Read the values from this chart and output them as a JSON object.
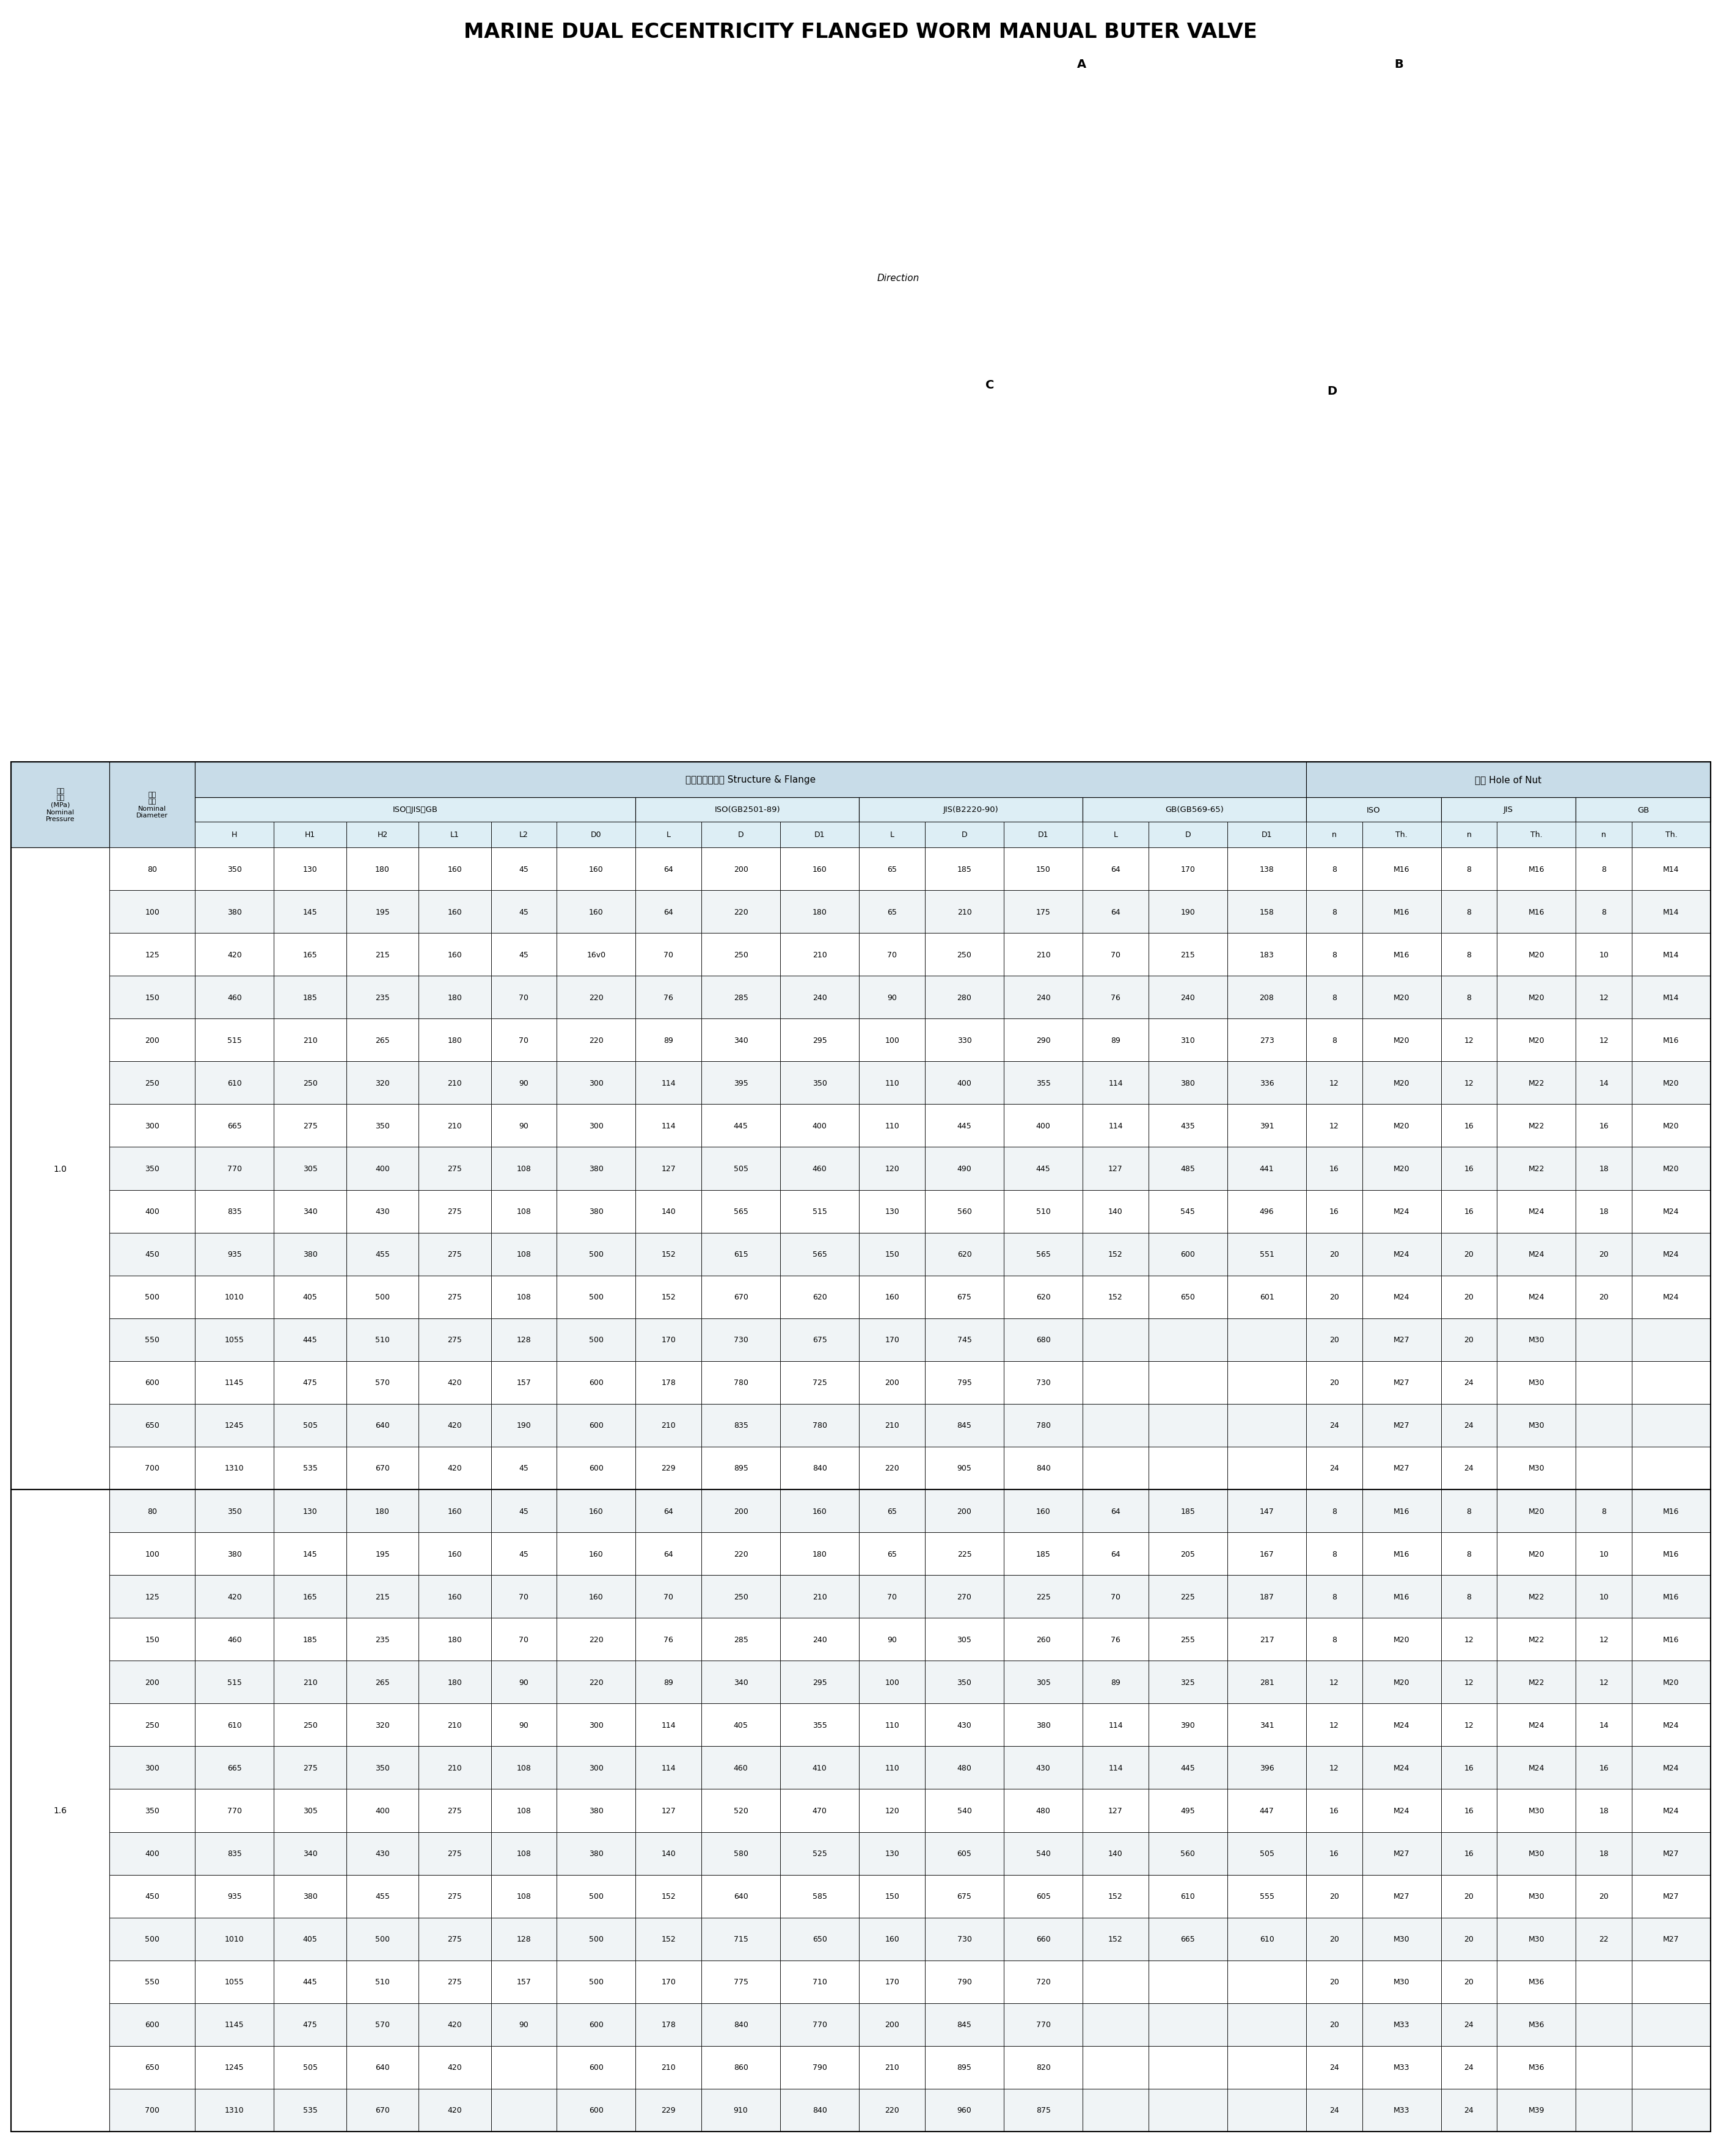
{
  "title": "MARINE DUAL ECCENTRICITY FLANGED WORM MANUAL BUTER VALVE",
  "rows_1_0": [
    [
      "80",
      "350",
      "130",
      "180",
      "160",
      "45",
      "160",
      "64",
      "200",
      "160",
      "65",
      "185",
      "150",
      "64",
      "170",
      "138",
      "8",
      "M16",
      "8",
      "M16",
      "8",
      "M14"
    ],
    [
      "100",
      "380",
      "145",
      "195",
      "160",
      "45",
      "160",
      "64",
      "220",
      "180",
      "65",
      "210",
      "175",
      "64",
      "190",
      "158",
      "8",
      "M16",
      "8",
      "M16",
      "8",
      "M14"
    ],
    [
      "125",
      "420",
      "165",
      "215",
      "160",
      "45",
      "16v0",
      "70",
      "250",
      "210",
      "70",
      "250",
      "210",
      "70",
      "215",
      "183",
      "8",
      "M16",
      "8",
      "M20",
      "10",
      "M14"
    ],
    [
      "150",
      "460",
      "185",
      "235",
      "180",
      "70",
      "220",
      "76",
      "285",
      "240",
      "90",
      "280",
      "240",
      "76",
      "240",
      "208",
      "8",
      "M20",
      "8",
      "M20",
      "12",
      "M14"
    ],
    [
      "200",
      "515",
      "210",
      "265",
      "180",
      "70",
      "220",
      "89",
      "340",
      "295",
      "100",
      "330",
      "290",
      "89",
      "310",
      "273",
      "8",
      "M20",
      "12",
      "M20",
      "12",
      "M16"
    ],
    [
      "250",
      "610",
      "250",
      "320",
      "210",
      "90",
      "300",
      "114",
      "395",
      "350",
      "110",
      "400",
      "355",
      "114",
      "380",
      "336",
      "12",
      "M20",
      "12",
      "M22",
      "14",
      "M20"
    ],
    [
      "300",
      "665",
      "275",
      "350",
      "210",
      "90",
      "300",
      "114",
      "445",
      "400",
      "110",
      "445",
      "400",
      "114",
      "435",
      "391",
      "12",
      "M20",
      "16",
      "M22",
      "16",
      "M20"
    ],
    [
      "350",
      "770",
      "305",
      "400",
      "275",
      "108",
      "380",
      "127",
      "505",
      "460",
      "120",
      "490",
      "445",
      "127",
      "485",
      "441",
      "16",
      "M20",
      "16",
      "M22",
      "18",
      "M20"
    ],
    [
      "400",
      "835",
      "340",
      "430",
      "275",
      "108",
      "380",
      "140",
      "565",
      "515",
      "130",
      "560",
      "510",
      "140",
      "545",
      "496",
      "16",
      "M24",
      "16",
      "M24",
      "18",
      "M24"
    ],
    [
      "450",
      "935",
      "380",
      "455",
      "275",
      "108",
      "500",
      "152",
      "615",
      "565",
      "150",
      "620",
      "565",
      "152",
      "600",
      "551",
      "20",
      "M24",
      "20",
      "M24",
      "20",
      "M24"
    ],
    [
      "500",
      "1010",
      "405",
      "500",
      "275",
      "108",
      "500",
      "152",
      "670",
      "620",
      "160",
      "675",
      "620",
      "152",
      "650",
      "601",
      "20",
      "M24",
      "20",
      "M24",
      "20",
      "M24"
    ],
    [
      "550",
      "1055",
      "445",
      "510",
      "275",
      "128",
      "500",
      "170",
      "730",
      "675",
      "170",
      "745",
      "680",
      "",
      "",
      "",
      "20",
      "M27",
      "20",
      "M30",
      "",
      ""
    ],
    [
      "600",
      "1145",
      "475",
      "570",
      "420",
      "157",
      "600",
      "178",
      "780",
      "725",
      "200",
      "795",
      "730",
      "",
      "",
      "",
      "20",
      "M27",
      "24",
      "M30",
      "",
      ""
    ],
    [
      "650",
      "1245",
      "505",
      "640",
      "420",
      "190",
      "600",
      "210",
      "835",
      "780",
      "210",
      "845",
      "780",
      "",
      "",
      "",
      "24",
      "M27",
      "24",
      "M30",
      "",
      ""
    ],
    [
      "700",
      "1310",
      "535",
      "670",
      "420",
      "45",
      "600",
      "229",
      "895",
      "840",
      "220",
      "905",
      "840",
      "",
      "",
      "",
      "24",
      "M27",
      "24",
      "M30",
      "",
      ""
    ]
  ],
  "rows_1_6": [
    [
      "80",
      "350",
      "130",
      "180",
      "160",
      "45",
      "160",
      "64",
      "200",
      "160",
      "65",
      "200",
      "160",
      "64",
      "185",
      "147",
      "8",
      "M16",
      "8",
      "M20",
      "8",
      "M16"
    ],
    [
      "100",
      "380",
      "145",
      "195",
      "160",
      "45",
      "160",
      "64",
      "220",
      "180",
      "65",
      "225",
      "185",
      "64",
      "205",
      "167",
      "8",
      "M16",
      "8",
      "M20",
      "10",
      "M16"
    ],
    [
      "125",
      "420",
      "165",
      "215",
      "160",
      "70",
      "160",
      "70",
      "250",
      "210",
      "70",
      "270",
      "225",
      "70",
      "225",
      "187",
      "8",
      "M16",
      "8",
      "M22",
      "10",
      "M16"
    ],
    [
      "150",
      "460",
      "185",
      "235",
      "180",
      "70",
      "220",
      "76",
      "285",
      "240",
      "90",
      "305",
      "260",
      "76",
      "255",
      "217",
      "8",
      "M20",
      "12",
      "M22",
      "12",
      "M16"
    ],
    [
      "200",
      "515",
      "210",
      "265",
      "180",
      "90",
      "220",
      "89",
      "340",
      "295",
      "100",
      "350",
      "305",
      "89",
      "325",
      "281",
      "12",
      "M20",
      "12",
      "M22",
      "12",
      "M20"
    ],
    [
      "250",
      "610",
      "250",
      "320",
      "210",
      "90",
      "300",
      "114",
      "405",
      "355",
      "110",
      "430",
      "380",
      "114",
      "390",
      "341",
      "12",
      "M24",
      "12",
      "M24",
      "14",
      "M24"
    ],
    [
      "300",
      "665",
      "275",
      "350",
      "210",
      "108",
      "300",
      "114",
      "460",
      "410",
      "110",
      "480",
      "430",
      "114",
      "445",
      "396",
      "12",
      "M24",
      "16",
      "M24",
      "16",
      "M24"
    ],
    [
      "350",
      "770",
      "305",
      "400",
      "275",
      "108",
      "380",
      "127",
      "520",
      "470",
      "120",
      "540",
      "480",
      "127",
      "495",
      "447",
      "16",
      "M24",
      "16",
      "M30",
      "18",
      "M24"
    ],
    [
      "400",
      "835",
      "340",
      "430",
      "275",
      "108",
      "380",
      "140",
      "580",
      "525",
      "130",
      "605",
      "540",
      "140",
      "560",
      "505",
      "16",
      "M27",
      "16",
      "M30",
      "18",
      "M27"
    ],
    [
      "450",
      "935",
      "380",
      "455",
      "275",
      "108",
      "500",
      "152",
      "640",
      "585",
      "150",
      "675",
      "605",
      "152",
      "610",
      "555",
      "20",
      "M27",
      "20",
      "M30",
      "20",
      "M27"
    ],
    [
      "500",
      "1010",
      "405",
      "500",
      "275",
      "128",
      "500",
      "152",
      "715",
      "650",
      "160",
      "730",
      "660",
      "152",
      "665",
      "610",
      "20",
      "M30",
      "20",
      "M30",
      "22",
      "M27"
    ],
    [
      "550",
      "1055",
      "445",
      "510",
      "275",
      "157",
      "500",
      "170",
      "775",
      "710",
      "170",
      "790",
      "720",
      "",
      "",
      "",
      "20",
      "M30",
      "20",
      "M36",
      "",
      ""
    ],
    [
      "600",
      "1145",
      "475",
      "570",
      "420",
      "90",
      "600",
      "178",
      "840",
      "770",
      "200",
      "845",
      "770",
      "",
      "",
      "",
      "20",
      "M33",
      "24",
      "M36",
      "",
      ""
    ],
    [
      "650",
      "1245",
      "505",
      "640",
      "420",
      "",
      "600",
      "210",
      "860",
      "790",
      "210",
      "895",
      "820",
      "",
      "",
      "",
      "24",
      "M33",
      "24",
      "M36",
      "",
      ""
    ],
    [
      "700",
      "1310",
      "535",
      "670",
      "420",
      "",
      "600",
      "229",
      "910",
      "840",
      "220",
      "960",
      "875",
      "",
      "",
      "",
      "24",
      "M33",
      "24",
      "M39",
      "",
      ""
    ]
  ],
  "bg_header": "#c8dce8",
  "bg_subheader": "#ddeef5",
  "bg_white": "#ffffff",
  "bg_alt": "#f0f4f6",
  "border_color": "#000000"
}
